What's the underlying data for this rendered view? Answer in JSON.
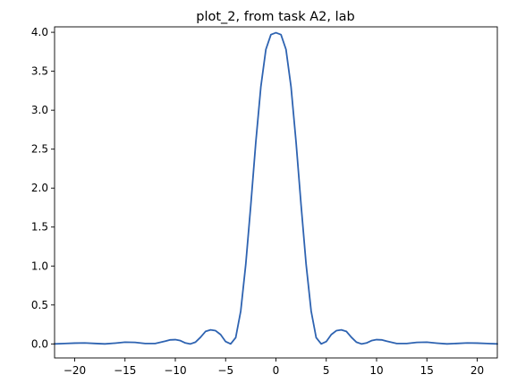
{
  "chart_data": {
    "type": "line",
    "title": "plot_2, from task A2, lab",
    "xlabel": "",
    "ylabel": "",
    "xlim": [
      -22,
      22
    ],
    "ylim": [
      -0.18,
      4.07
    ],
    "xticks": [
      -20,
      -15,
      -10,
      -5,
      0,
      5,
      10,
      15,
      20
    ],
    "xtick_labels": [
      "−20",
      "−15",
      "−10",
      "−5",
      "0",
      "5",
      "10",
      "15",
      "20"
    ],
    "yticks": [
      0.0,
      0.5,
      1.0,
      1.5,
      2.0,
      2.5,
      3.0,
      3.5,
      4.0
    ],
    "ytick_labels": [
      "0.0",
      "0.5",
      "1.0",
      "1.5",
      "2.0",
      "2.5",
      "3.0",
      "3.5",
      "4.0"
    ],
    "grid": false,
    "series": [
      {
        "color": "#2e63b1",
        "x": [
          -22,
          -21,
          -20,
          -19,
          -18,
          -17,
          -16,
          -15,
          -14,
          -13,
          -12,
          -11,
          -10.5,
          -10,
          -9.5,
          -9,
          -8.5,
          -8,
          -7.5,
          -7,
          -6.5,
          -6,
          -5.5,
          -5,
          -4.5,
          -4,
          -3.5,
          -3,
          -2.5,
          -2,
          -1.5,
          -1,
          -0.5,
          0,
          0.5,
          1,
          1.5,
          2,
          2.5,
          3,
          3.5,
          4,
          4.5,
          5,
          5.5,
          6,
          6.5,
          7,
          7.5,
          8,
          8.5,
          9,
          9.5,
          10,
          10.5,
          11,
          12,
          13,
          14,
          15,
          16,
          17,
          18,
          19,
          20,
          21,
          22
        ],
        "y": [
          0.0,
          0.005,
          0.01,
          0.012,
          0.006,
          0.0,
          0.01,
          0.022,
          0.02,
          0.005,
          0.005,
          0.035,
          0.052,
          0.055,
          0.042,
          0.012,
          0.0,
          0.022,
          0.085,
          0.16,
          0.18,
          0.17,
          0.12,
          0.03,
          0.0,
          0.08,
          0.42,
          1.02,
          1.78,
          2.59,
          3.3,
          3.78,
          3.97,
          3.995,
          3.97,
          3.78,
          3.3,
          2.59,
          1.78,
          1.02,
          0.42,
          0.08,
          0.0,
          0.03,
          0.12,
          0.17,
          0.18,
          0.16,
          0.085,
          0.022,
          0.0,
          0.012,
          0.042,
          0.055,
          0.052,
          0.035,
          0.005,
          0.005,
          0.02,
          0.022,
          0.01,
          0.0,
          0.006,
          0.012,
          0.01,
          0.005,
          0.0
        ]
      }
    ]
  }
}
